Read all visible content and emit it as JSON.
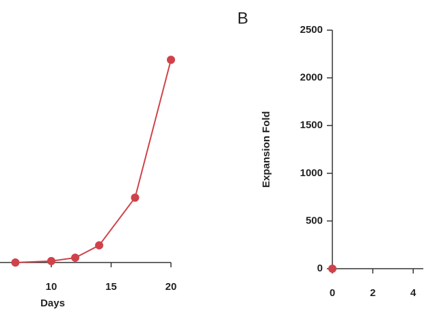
{
  "chart_data": [
    {
      "type": "line",
      "x_label": "Days",
      "x": [
        7,
        10,
        12,
        14,
        17,
        20
      ],
      "values": [
        0,
        15,
        50,
        180,
        680,
        2125
      ],
      "color": "#d0424a",
      "xlim": [
        0,
        20
      ],
      "xticks": [
        10,
        15,
        20
      ],
      "ylim": [
        0,
        2500
      ]
    },
    {
      "type": "line",
      "panel_label": "B",
      "y_label": "Expansion Fold",
      "x": [
        0
      ],
      "values": [
        0
      ],
      "color": "#d0424a",
      "xlim": [
        0,
        4.5
      ],
      "xticks": [
        0,
        2,
        4
      ],
      "ylim": [
        0,
        2500
      ],
      "yticks": [
        0,
        500,
        1000,
        1500,
        2000,
        2500
      ]
    }
  ]
}
